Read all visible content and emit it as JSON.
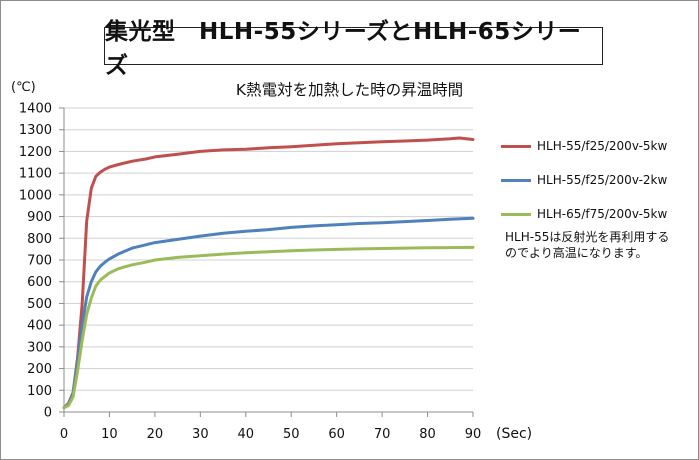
{
  "chart_data": {
    "type": "line",
    "title": "集光型　HLH-55シリーズとHLH-65シリーズ",
    "subtitle": "K熱電対を加熱した時の昇温時間",
    "ylabel": "(℃)",
    "xlabel": "(Sec)",
    "xlim": [
      0,
      90
    ],
    "ylim": [
      0,
      1400
    ],
    "x_ticks": [
      "0",
      "10",
      "20",
      "30",
      "40",
      "50",
      "60",
      "70",
      "80",
      "90"
    ],
    "y_ticks": [
      "0",
      "100",
      "200",
      "300",
      "400",
      "500",
      "600",
      "700",
      "800",
      "900",
      "1000",
      "1100",
      "1200",
      "1300",
      "1400"
    ],
    "grid": "horizontal",
    "legend_position": "right",
    "series": [
      {
        "name": "HLH-55/f25/200v-5kw",
        "color": "#c0504d",
        "points": [
          [
            0,
            20
          ],
          [
            1,
            40
          ],
          [
            2,
            90
          ],
          [
            3,
            250
          ],
          [
            4,
            500
          ],
          [
            5,
            880
          ],
          [
            6,
            1030
          ],
          [
            7,
            1085
          ],
          [
            8,
            1105
          ],
          [
            9,
            1118
          ],
          [
            10,
            1128
          ],
          [
            12,
            1140
          ],
          [
            15,
            1155
          ],
          [
            18,
            1165
          ],
          [
            20,
            1175
          ],
          [
            25,
            1187
          ],
          [
            30,
            1200
          ],
          [
            35,
            1207
          ],
          [
            40,
            1210
          ],
          [
            45,
            1217
          ],
          [
            50,
            1222
          ],
          [
            55,
            1228
          ],
          [
            60,
            1235
          ],
          [
            65,
            1240
          ],
          [
            70,
            1245
          ],
          [
            75,
            1248
          ],
          [
            80,
            1252
          ],
          [
            85,
            1258
          ],
          [
            87,
            1262
          ],
          [
            90,
            1255
          ]
        ]
      },
      {
        "name": "HLH-55/f25/200v-2kw",
        "color": "#4f81bd",
        "points": [
          [
            0,
            20
          ],
          [
            1,
            35
          ],
          [
            2,
            85
          ],
          [
            3,
            230
          ],
          [
            4,
            400
          ],
          [
            5,
            530
          ],
          [
            6,
            600
          ],
          [
            7,
            645
          ],
          [
            8,
            672
          ],
          [
            9,
            690
          ],
          [
            10,
            705
          ],
          [
            12,
            728
          ],
          [
            15,
            755
          ],
          [
            18,
            770
          ],
          [
            20,
            780
          ],
          [
            25,
            795
          ],
          [
            30,
            810
          ],
          [
            35,
            823
          ],
          [
            40,
            832
          ],
          [
            45,
            840
          ],
          [
            50,
            850
          ],
          [
            55,
            857
          ],
          [
            60,
            862
          ],
          [
            65,
            868
          ],
          [
            70,
            872
          ],
          [
            75,
            877
          ],
          [
            80,
            882
          ],
          [
            85,
            888
          ],
          [
            90,
            892
          ]
        ]
      },
      {
        "name": "HLH-65/f75/200v-5kw",
        "color": "#9bbb59",
        "points": [
          [
            0,
            20
          ],
          [
            1,
            30
          ],
          [
            2,
            70
          ],
          [
            3,
            190
          ],
          [
            4,
            330
          ],
          [
            5,
            450
          ],
          [
            6,
            525
          ],
          [
            7,
            580
          ],
          [
            8,
            608
          ],
          [
            9,
            625
          ],
          [
            10,
            640
          ],
          [
            12,
            660
          ],
          [
            15,
            678
          ],
          [
            18,
            690
          ],
          [
            20,
            700
          ],
          [
            25,
            712
          ],
          [
            30,
            720
          ],
          [
            35,
            727
          ],
          [
            40,
            733
          ],
          [
            45,
            738
          ],
          [
            50,
            743
          ],
          [
            55,
            746
          ],
          [
            60,
            749
          ],
          [
            65,
            751
          ],
          [
            70,
            753
          ],
          [
            75,
            755
          ],
          [
            80,
            756
          ],
          [
            85,
            757
          ],
          [
            90,
            758
          ]
        ]
      }
    ],
    "annotation": [
      "HLH-55は反射光を再利用する",
      "のでより高温になります。"
    ]
  }
}
